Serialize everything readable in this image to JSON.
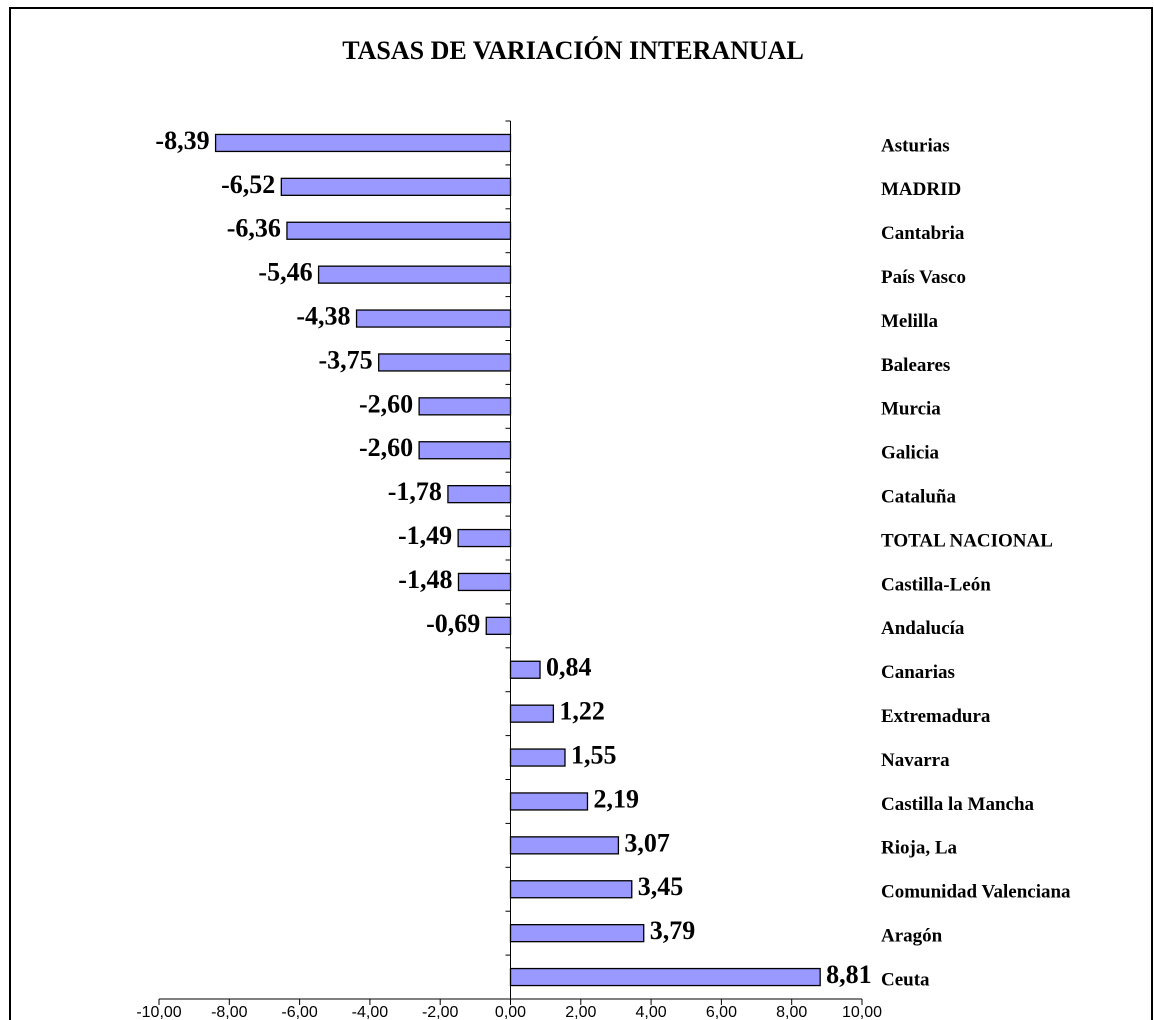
{
  "chart_data": {
    "type": "bar",
    "orientation": "horizontal",
    "title": "TASAS DE VARIACIÓN INTERANUAL",
    "categories": [
      "Asturias",
      "MADRID",
      "Cantabria",
      "País Vasco",
      "Melilla",
      "Baleares",
      "Murcia",
      "Galicia",
      "Cataluña",
      "TOTAL NACIONAL",
      "Castilla-León",
      "Andalucía",
      "Canarias",
      "Extremadura",
      "Navarra",
      "Castilla la Mancha",
      "Rioja, La",
      "Comunidad Valenciana",
      "Aragón",
      "Ceuta"
    ],
    "values": [
      -8.39,
      -6.52,
      -6.36,
      -5.46,
      -4.38,
      -3.75,
      -2.6,
      -2.6,
      -1.78,
      -1.49,
      -1.48,
      -0.69,
      0.84,
      1.22,
      1.55,
      2.19,
      3.07,
      3.45,
      3.79,
      8.81
    ],
    "value_labels": [
      "-8,39",
      "-6,52",
      "-6,36",
      "-5,46",
      "-4,38",
      "-3,75",
      "-2,60",
      "-2,60",
      "-1,78",
      "-1,49",
      "-1,48",
      "-0,69",
      "0,84",
      "1,22",
      "1,55",
      "2,19",
      "3,07",
      "3,45",
      "3,79",
      "8,81"
    ],
    "color": "#9999ff",
    "xlim": [
      -10,
      10
    ],
    "xticks": [
      {
        "value": -10,
        "label": "-10,00"
      },
      {
        "value": -8,
        "label": "-8,00"
      },
      {
        "value": -6,
        "label": "-6,00"
      },
      {
        "value": -4,
        "label": "-4,00"
      },
      {
        "value": -2,
        "label": "-2,00"
      },
      {
        "value": 0,
        "label": "0,00"
      },
      {
        "value": 2,
        "label": "2,00"
      },
      {
        "value": 4,
        "label": "4,00"
      },
      {
        "value": 6,
        "label": "6,00"
      },
      {
        "value": 8,
        "label": "8,00"
      },
      {
        "value": 10,
        "label": "10,00"
      }
    ],
    "grid": false
  }
}
